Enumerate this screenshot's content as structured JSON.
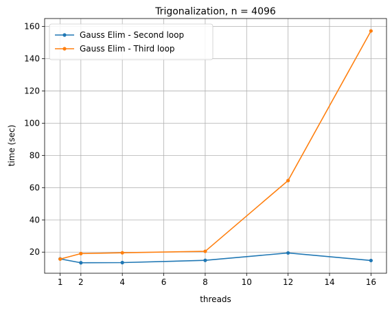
{
  "chart_data": {
    "type": "line",
    "title": "Trigonalization, n = 4096",
    "xlabel": "threads",
    "ylabel": "time (sec)",
    "xlim": [
      0.25,
      16.75
    ],
    "ylim": [
      6.9,
      164.9
    ],
    "xticks": [
      1,
      2,
      4,
      6,
      8,
      10,
      12,
      14,
      16
    ],
    "yticks": [
      20,
      40,
      60,
      80,
      100,
      120,
      140,
      160
    ],
    "grid": true,
    "legend_position": "top-left",
    "series": [
      {
        "name": "Gauss Elim - Second loop",
        "color": "#1f77b4",
        "x": [
          1,
          2,
          4,
          8,
          12,
          16
        ],
        "y": [
          15.8,
          13.4,
          13.5,
          14.9,
          19.5,
          14.8
        ]
      },
      {
        "name": "Gauss Elim - Third loop",
        "color": "#ff7f0e",
        "x": [
          1,
          2,
          4,
          8,
          12,
          16
        ],
        "y": [
          15.7,
          19.1,
          19.6,
          20.5,
          64.4,
          157.2
        ]
      }
    ]
  }
}
